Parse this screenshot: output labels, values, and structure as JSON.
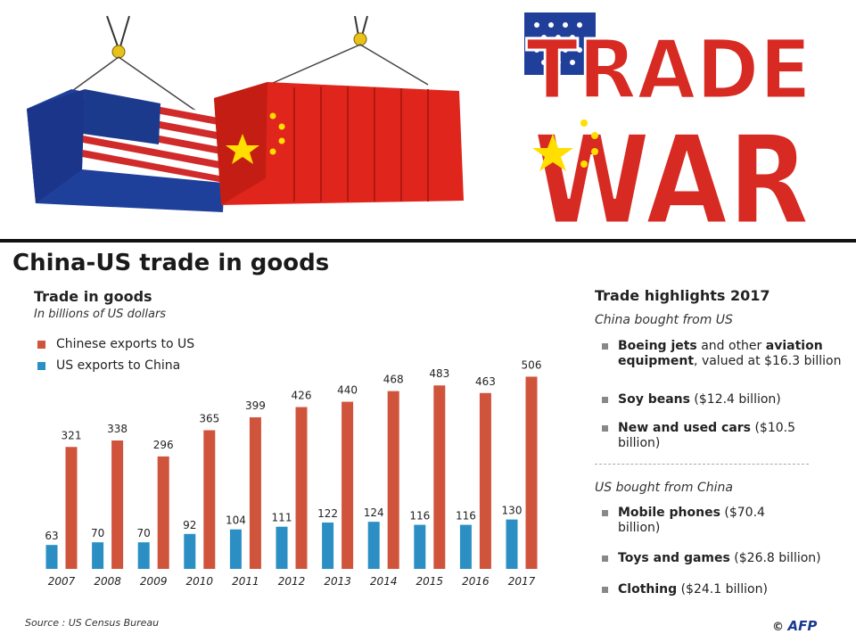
{
  "banner": {
    "trade_word": "TRADE",
    "war_word": "WAR"
  },
  "page": {
    "title": "China-US trade in goods"
  },
  "chart_data": {
    "type": "bar",
    "title": "Trade in goods",
    "subtitle": "In billions of US dollars",
    "categories": [
      "2007",
      "2008",
      "2009",
      "2010",
      "2011",
      "2012",
      "2013",
      "2014",
      "2015",
      "2016",
      "2017"
    ],
    "series": [
      {
        "name": "Chinese exports to US",
        "color": "#d0533c",
        "values": [
          321,
          338,
          296,
          365,
          399,
          426,
          440,
          468,
          483,
          463,
          506
        ]
      },
      {
        "name": "US exports to China",
        "color": "#2b8fc4",
        "values": [
          63,
          70,
          70,
          92,
          104,
          111,
          122,
          124,
          116,
          116,
          130
        ]
      }
    ],
    "legend_position": "top-left",
    "grid": false
  },
  "highlights": {
    "title": "Trade highlights 2017",
    "china_heading": "China bought from US",
    "china_items": [
      {
        "bold": "Boeing jets",
        "mid": " and other ",
        "bold2": "aviation equipment",
        "rest": ", valued at $16.3 billion"
      },
      {
        "bold": "Soy beans",
        "rest": " ($12.4 billion)"
      },
      {
        "bold": "New and used cars",
        "rest": " ($10.5 billion)"
      }
    ],
    "us_heading": "US bought from China",
    "us_items": [
      {
        "bold": "Mobile phones",
        "rest": " ($70.4 billion)"
      },
      {
        "bold": "Toys and games",
        "rest": " ($26.8 billion)"
      },
      {
        "bold": "Clothing",
        "rest": " ($24.1 billion)"
      }
    ]
  },
  "footer": {
    "source": "Source : US Census Bureau",
    "copyright": "©",
    "agency": "AFP"
  }
}
